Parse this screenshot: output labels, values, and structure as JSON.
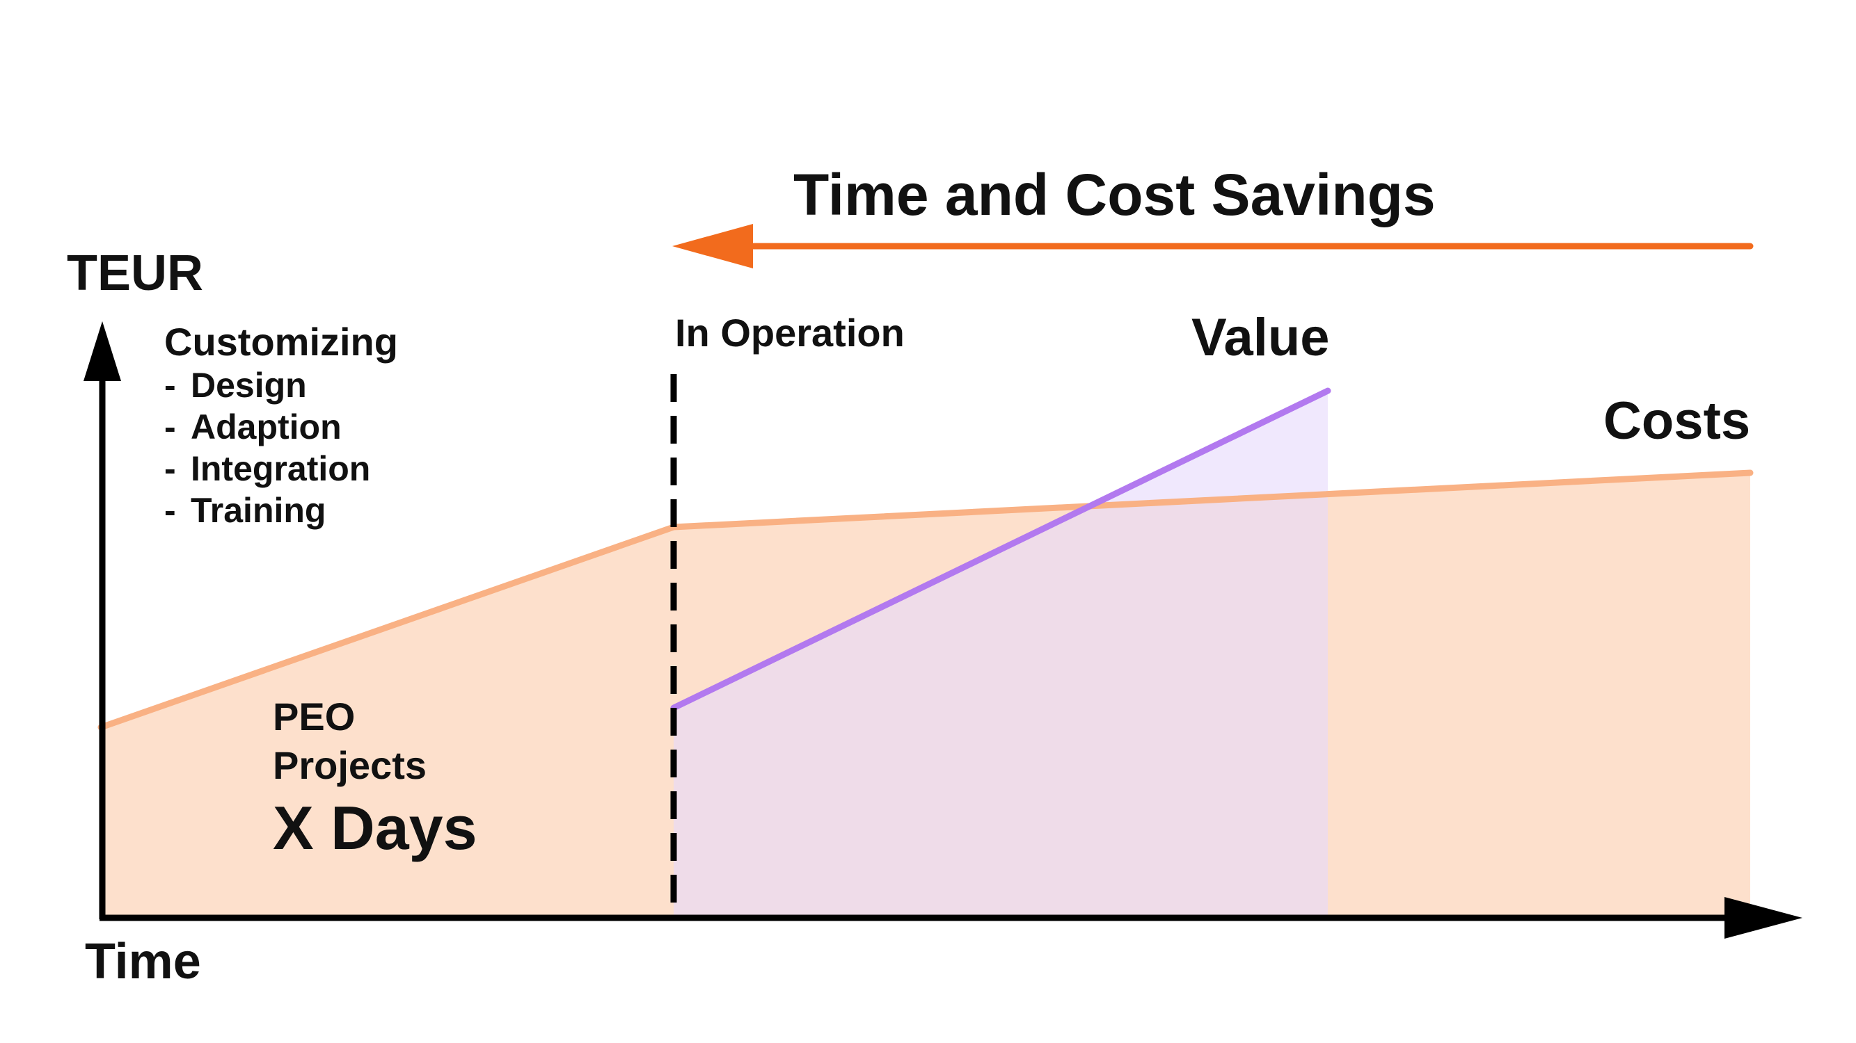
{
  "title": "Time and Cost Savings",
  "y_axis_label": "TEUR",
  "x_axis_label": "Time",
  "operation_label": "In Operation",
  "value_label": "Value",
  "costs_label": "Costs",
  "customizing": {
    "heading": "Customizing",
    "items": [
      "Design",
      "Adaption",
      "Integration",
      "Training"
    ]
  },
  "peo": {
    "line1": "PEO",
    "line2": "Projects",
    "duration": "X Days"
  },
  "colors": {
    "savings_arrow": "#f26b1d",
    "costs_line": "#f9b184",
    "costs_fill": "#fde0cc",
    "value_line": "#b279ef",
    "value_fill": "#e6d8fb",
    "axis": "#000000"
  }
}
